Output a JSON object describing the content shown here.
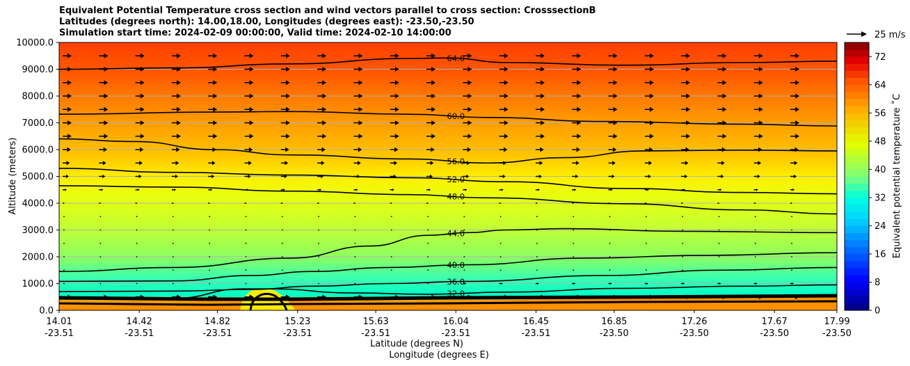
{
  "chart_data": {
    "type": "contourf",
    "title_lines": [
      "Equivalent Potential Temperature cross section and wind vectors parallel to cross section: CrosssectionB",
      "Latitudes (degrees north): 14.00,18.00, Longitudes (degrees east): -23.50,-23.50",
      "Simulation start time: 2024-02-09 00:00:00, Valid time: 2024-02-10 14:00:00"
    ],
    "ylabel": "Altitude (meters)",
    "xlabel_lat": "Latitude (degrees N)",
    "xlabel_lon": "Longitude (degrees E)",
    "ylim": [
      0,
      10000
    ],
    "xlim": [
      14.01,
      17.99
    ],
    "y_ticks": [
      0,
      1000,
      2000,
      3000,
      4000,
      5000,
      6000,
      7000,
      8000,
      9000,
      10000
    ],
    "y_tick_labels": [
      "0.0",
      "1000.0",
      "2000.0",
      "3000.0",
      "4000.0",
      "5000.0",
      "6000.0",
      "7000.0",
      "8000.0",
      "9000.0",
      "10000.0"
    ],
    "x_ticks": [
      {
        "lat": "14.01",
        "lon": "-23.51",
        "v": 14.01
      },
      {
        "lat": "14.42",
        "lon": "-23.51",
        "v": 14.42
      },
      {
        "lat": "14.82",
        "lon": "-23.51",
        "v": 14.82
      },
      {
        "lat": "15.23",
        "lon": "-23.51",
        "v": 15.23
      },
      {
        "lat": "15.63",
        "lon": "-23.51",
        "v": 15.63
      },
      {
        "lat": "16.04",
        "lon": "-23.51",
        "v": 16.04
      },
      {
        "lat": "16.45",
        "lon": "-23.51",
        "v": 16.45
      },
      {
        "lat": "16.85",
        "lon": "-23.50",
        "v": 16.85
      },
      {
        "lat": "17.26",
        "lon": "-23.50",
        "v": 17.26
      },
      {
        "lat": "17.67",
        "lon": "-23.50",
        "v": 17.67
      },
      {
        "lat": "17.99",
        "lon": "-23.50",
        "v": 17.99
      }
    ],
    "colorbar": {
      "label": "Equivalent potential temperature ˚C",
      "min": 0,
      "max": 76,
      "ticks": [
        0,
        8,
        16,
        24,
        32,
        40,
        48,
        56,
        64,
        72
      ],
      "tick_labels": [
        "0",
        "8",
        "16",
        "24",
        "32",
        "40",
        "48",
        "56",
        "64",
        "72"
      ]
    },
    "quiver_key": {
      "label": "25 m/s",
      "speed": 25
    },
    "contours": [
      {
        "level": 64,
        "label": "64.0",
        "label_x": 16.04,
        "points": [
          [
            14.01,
            9000
          ],
          [
            14.6,
            9050
          ],
          [
            15.2,
            9200
          ],
          [
            15.8,
            9400
          ],
          [
            16.0,
            9420
          ],
          [
            16.3,
            9250
          ],
          [
            16.9,
            9150
          ],
          [
            17.5,
            9250
          ],
          [
            17.99,
            9300
          ]
        ]
      },
      {
        "level": 60,
        "label": "60.0",
        "label_x": 16.04,
        "points": [
          [
            14.01,
            7320
          ],
          [
            14.8,
            7400
          ],
          [
            15.2,
            7420
          ],
          [
            15.8,
            7320
          ],
          [
            16.2,
            7200
          ],
          [
            16.8,
            7050
          ],
          [
            17.5,
            6950
          ],
          [
            17.99,
            6880
          ]
        ]
      },
      {
        "level": 56,
        "label": "56.0",
        "label_x": 16.04,
        "points": [
          [
            14.01,
            6400
          ],
          [
            14.4,
            6300
          ],
          [
            14.8,
            6000
          ],
          [
            15.2,
            5800
          ],
          [
            15.8,
            5650
          ],
          [
            16.2,
            5500
          ],
          [
            16.6,
            5700
          ],
          [
            17.0,
            5950
          ],
          [
            17.5,
            5980
          ],
          [
            17.99,
            5950
          ]
        ]
      },
      {
        "level": 52,
        "label": "52.0",
        "label_x": 16.04,
        "points": [
          [
            14.01,
            5300
          ],
          [
            14.6,
            5150
          ],
          [
            15.2,
            5050
          ],
          [
            15.8,
            4950
          ],
          [
            16.3,
            4800
          ],
          [
            16.9,
            4550
          ],
          [
            17.5,
            4400
          ],
          [
            17.99,
            4350
          ]
        ]
      },
      {
        "level": 48,
        "label": "48.0",
        "label_x": 16.04,
        "points": [
          [
            14.01,
            4650
          ],
          [
            14.6,
            4600
          ],
          [
            15.2,
            4450
          ],
          [
            15.8,
            4320
          ],
          [
            16.2,
            4200
          ],
          [
            16.9,
            3980
          ],
          [
            17.5,
            3750
          ],
          [
            17.99,
            3600
          ]
        ]
      },
      {
        "level": 44,
        "label": "44.0",
        "label_x": 16.04,
        "points": [
          [
            14.01,
            1450
          ],
          [
            14.6,
            1600
          ],
          [
            15.2,
            1950
          ],
          [
            15.6,
            2400
          ],
          [
            15.9,
            2800
          ],
          [
            16.1,
            2900
          ],
          [
            16.3,
            3000
          ],
          [
            16.6,
            3050
          ],
          [
            17.2,
            2950
          ],
          [
            17.99,
            2900
          ]
        ]
      },
      {
        "level": 40,
        "label": "40.0",
        "label_x": 16.04,
        "points": [
          [
            14.01,
            1080
          ],
          [
            14.6,
            1100
          ],
          [
            15.0,
            1300
          ],
          [
            15.3,
            1450
          ],
          [
            15.7,
            1600
          ],
          [
            16.1,
            1700
          ],
          [
            16.7,
            1950
          ],
          [
            17.3,
            2050
          ],
          [
            17.99,
            2150
          ]
        ]
      },
      {
        "level": 36,
        "label": "36.0",
        "label_x": 16.04,
        "points": [
          [
            14.01,
            700
          ],
          [
            14.6,
            720
          ],
          [
            15.0,
            780
          ],
          [
            15.3,
            900
          ],
          [
            15.7,
            1000
          ],
          [
            16.1,
            1080
          ],
          [
            16.8,
            1300
          ],
          [
            17.4,
            1500
          ],
          [
            17.99,
            1600
          ]
        ]
      },
      {
        "level": 32,
        "label": "32.0",
        "label_x": 16.04,
        "points": [
          [
            14.01,
            420
          ],
          [
            14.6,
            450
          ],
          [
            14.95,
            800
          ],
          [
            15.1,
            800
          ],
          [
            15.5,
            650
          ],
          [
            15.9,
            600
          ],
          [
            16.3,
            680
          ],
          [
            16.9,
            820
          ],
          [
            17.5,
            900
          ],
          [
            17.99,
            950
          ]
        ]
      }
    ]
  }
}
